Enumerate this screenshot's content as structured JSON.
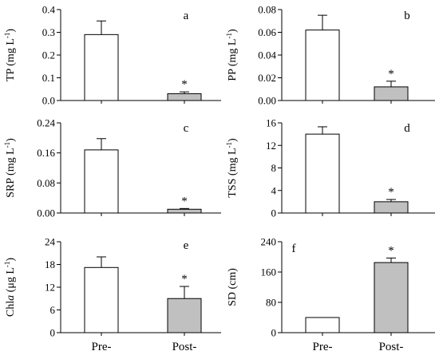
{
  "chart_data": [
    {
      "type": "bar",
      "letter": "a",
      "ylabel_main": "TP (mg L",
      "ylabel_sup": "-1",
      "ylabel_close": ")",
      "categories": [
        "Pre-",
        "Post-"
      ],
      "values": [
        0.29,
        0.03
      ],
      "errors": [
        0.06,
        0.008
      ],
      "significance": [
        "",
        "*"
      ],
      "ylim": [
        0,
        0.4
      ],
      "yticks": [
        "0.0",
        "0.1",
        "0.2",
        "0.3",
        "0.4"
      ],
      "yticks_val": [
        0,
        0.1,
        0.2,
        0.3,
        0.4
      ],
      "show_xlabels": false
    },
    {
      "type": "bar",
      "letter": "b",
      "ylabel_main": "PP (mg L",
      "ylabel_sup": "-1",
      "ylabel_close": ")",
      "categories": [
        "Pre-",
        "Post-"
      ],
      "values": [
        0.062,
        0.012
      ],
      "errors": [
        0.013,
        0.005
      ],
      "significance": [
        "",
        "*"
      ],
      "ylim": [
        0,
        0.08
      ],
      "yticks": [
        "0.00",
        "0.02",
        "0.04",
        "0.06",
        "0.08"
      ],
      "yticks_val": [
        0,
        0.02,
        0.04,
        0.06,
        0.08
      ],
      "show_xlabels": false
    },
    {
      "type": "bar",
      "letter": "c",
      "ylabel_main": "SRP (mg L",
      "ylabel_sup": "-1",
      "ylabel_close": ")",
      "categories": [
        "Pre-",
        "Post-"
      ],
      "values": [
        0.168,
        0.01
      ],
      "errors": [
        0.03,
        0.002
      ],
      "significance": [
        "",
        "*"
      ],
      "ylim": [
        0,
        0.24
      ],
      "yticks": [
        "0.00",
        "0.08",
        "0.16",
        "0.24"
      ],
      "yticks_val": [
        0,
        0.08,
        0.16,
        0.24
      ],
      "show_xlabels": false
    },
    {
      "type": "bar",
      "letter": "d",
      "ylabel_main": "TSS (mg L",
      "ylabel_sup": "-1",
      "ylabel_close": ")",
      "categories": [
        "Pre-",
        "Post-"
      ],
      "values": [
        14.0,
        2.0
      ],
      "errors": [
        1.3,
        0.4
      ],
      "significance": [
        "",
        "*"
      ],
      "ylim": [
        0,
        16
      ],
      "yticks": [
        "0",
        "4",
        "8",
        "12",
        "16"
      ],
      "yticks_val": [
        0,
        4,
        8,
        12,
        16
      ],
      "show_xlabels": false
    },
    {
      "type": "bar",
      "letter": "e",
      "ylabel_main": "Chl",
      "ylabel_ital": "a",
      "ylabel_rest": " (μg L",
      "ylabel_sup": "-1",
      "ylabel_close": ")",
      "categories": [
        "Pre-",
        "Post-"
      ],
      "values": [
        17.2,
        9.0
      ],
      "errors": [
        2.8,
        3.2
      ],
      "significance": [
        "",
        "*"
      ],
      "ylim": [
        0,
        24
      ],
      "yticks": [
        "0",
        "6",
        "12",
        "18",
        "24"
      ],
      "yticks_val": [
        0,
        6,
        12,
        18,
        24
      ],
      "show_xlabels": true
    },
    {
      "type": "bar",
      "letter": "f",
      "ylabel_main": "SD (cm)",
      "categories": [
        "Pre-",
        "Post-"
      ],
      "values": [
        40,
        185
      ],
      "errors": [
        0,
        12
      ],
      "significance": [
        "",
        "*"
      ],
      "ylim": [
        0,
        240
      ],
      "yticks": [
        "0",
        "80",
        "160",
        "240"
      ],
      "yticks_val": [
        0,
        80,
        160,
        240
      ],
      "show_xlabels": true
    }
  ],
  "colors": {
    "pre_fill": "#ffffff",
    "post_fill": "#c0c0c0",
    "stroke": "#000000"
  }
}
